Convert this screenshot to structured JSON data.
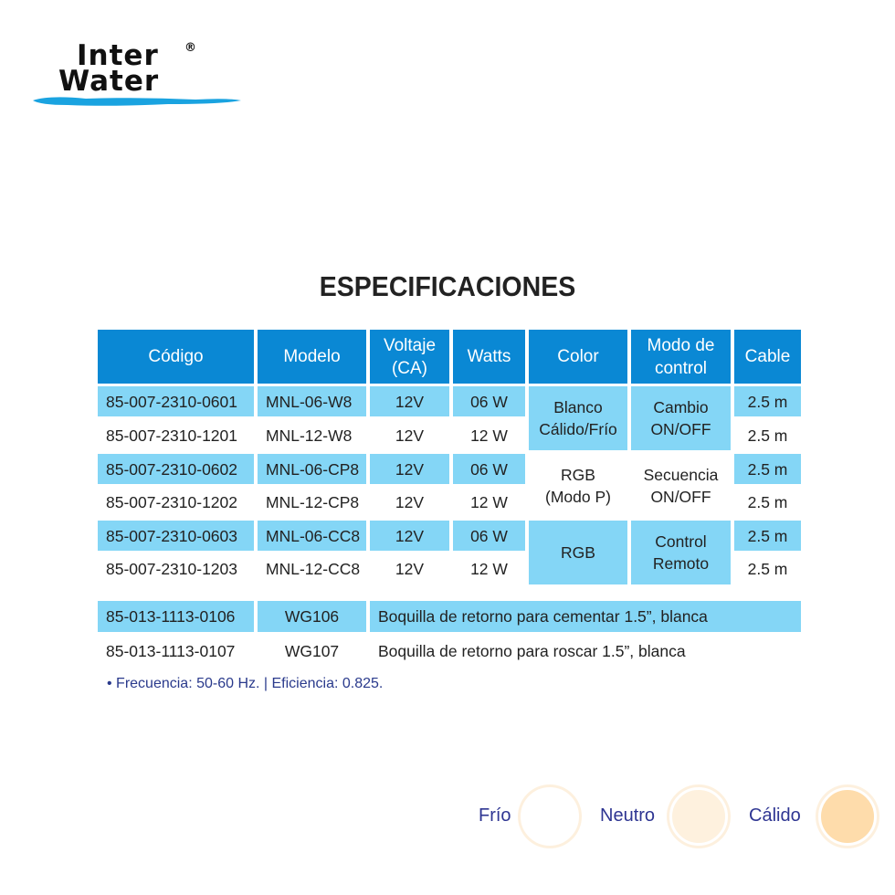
{
  "logo": {
    "line1": "Inter",
    "line2": "Water",
    "mark": "®",
    "wave_color": "#1aa3e0"
  },
  "title": "ESPECIFICACIONES",
  "colors": {
    "header": "#0a88d4",
    "shaded": "#84d6f6",
    "note": "#2a3a8c"
  },
  "table": {
    "headers": [
      "Código",
      "Modelo",
      "Voltaje\n(CA)",
      "Watts",
      "Color",
      "Modo de\ncontrol",
      "Cable"
    ],
    "rows": [
      [
        "85-007-2310-0601",
        "MNL-06-W8",
        "12V",
        "06 W",
        "2.5 m"
      ],
      [
        "85-007-2310-1201",
        "MNL-12-W8",
        "12V",
        "12 W",
        "2.5 m"
      ],
      [
        "85-007-2310-0602",
        "MNL-06-CP8",
        "12V",
        "06 W",
        "2.5 m"
      ],
      [
        "85-007-2310-1202",
        "MNL-12-CP8",
        "12V",
        "12 W",
        "2.5 m"
      ],
      [
        "85-007-2310-0603",
        "MNL-06-CC8",
        "12V",
        "06 W",
        "2.5 m"
      ],
      [
        "85-007-2310-1203",
        "MNL-12-CC8",
        "12V",
        "12 W",
        "2.5 m"
      ]
    ],
    "groups": [
      {
        "color": "Blanco\nCálido/Frío",
        "control": "Cambio\nON/OFF"
      },
      {
        "color": "RGB\n(Modo P)",
        "control": "Secuencia\nON/OFF"
      },
      {
        "color": "RGB",
        "control": "Control\nRemoto"
      }
    ]
  },
  "accessories": [
    [
      "85-013-1113-0106",
      "WG106",
      "Boquilla de retorno para cementar 1.5”, blanca"
    ],
    [
      "85-013-1113-0107",
      "WG107",
      "Boquilla de retorno para roscar 1.5”, blanca"
    ]
  ],
  "note": "•  Frecuencia: 50-60 Hz.  |  Eficiencia: 0.825.",
  "legend": [
    {
      "label": "Frío",
      "color": "#ffffff"
    },
    {
      "label": "Neutro",
      "color": "#fef1de"
    },
    {
      "label": "Cálido",
      "color": "#fedcab"
    }
  ]
}
